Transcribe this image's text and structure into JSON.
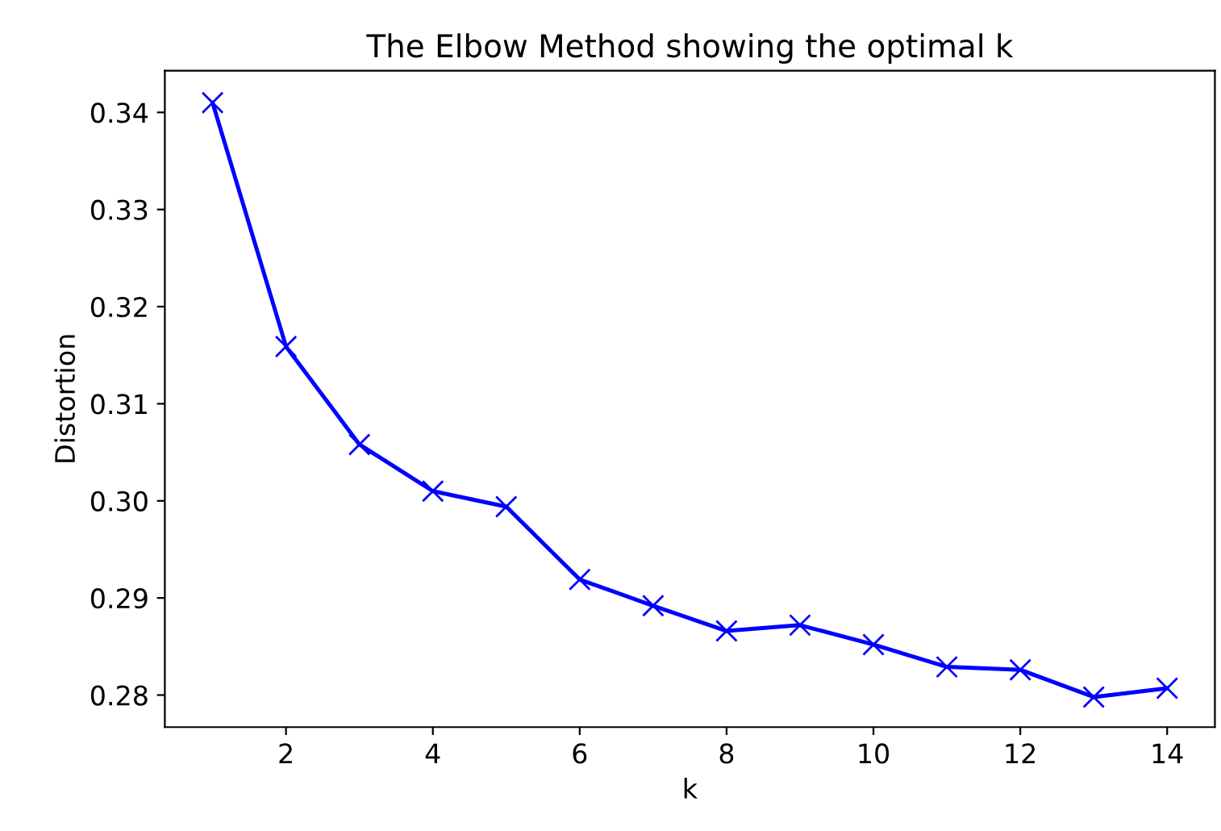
{
  "chart_data": {
    "type": "line",
    "title": "The Elbow Method showing the optimal k",
    "xlabel": "k",
    "ylabel": "Distortion",
    "x": [
      1,
      2,
      3,
      4,
      5,
      6,
      7,
      8,
      9,
      10,
      11,
      12,
      13,
      14
    ],
    "series": [
      {
        "color": "#0000ff",
        "values": [
          0.341,
          0.3159,
          0.3058,
          0.301,
          0.2994,
          0.2919,
          0.2892,
          0.2866,
          0.2872,
          0.2852,
          0.2829,
          0.2826,
          0.2798,
          0.2807
        ]
      }
    ],
    "marker": "cross",
    "line_style": "solid",
    "xlim": [
      0.35,
      14.65
    ],
    "xticks": [
      2,
      4,
      6,
      8,
      10,
      12,
      14
    ],
    "ylim": [
      0.2767,
      0.3443
    ],
    "yticks": [
      {
        "value": 0.28,
        "label": "0.28"
      },
      {
        "value": 0.29,
        "label": "0.29"
      },
      {
        "value": 0.3,
        "label": "0.30"
      },
      {
        "value": 0.31,
        "label": "0.31"
      },
      {
        "value": 0.32,
        "label": "0.32"
      },
      {
        "value": 0.33,
        "label": "0.33"
      },
      {
        "value": 0.34,
        "label": "0.34"
      }
    ]
  }
}
